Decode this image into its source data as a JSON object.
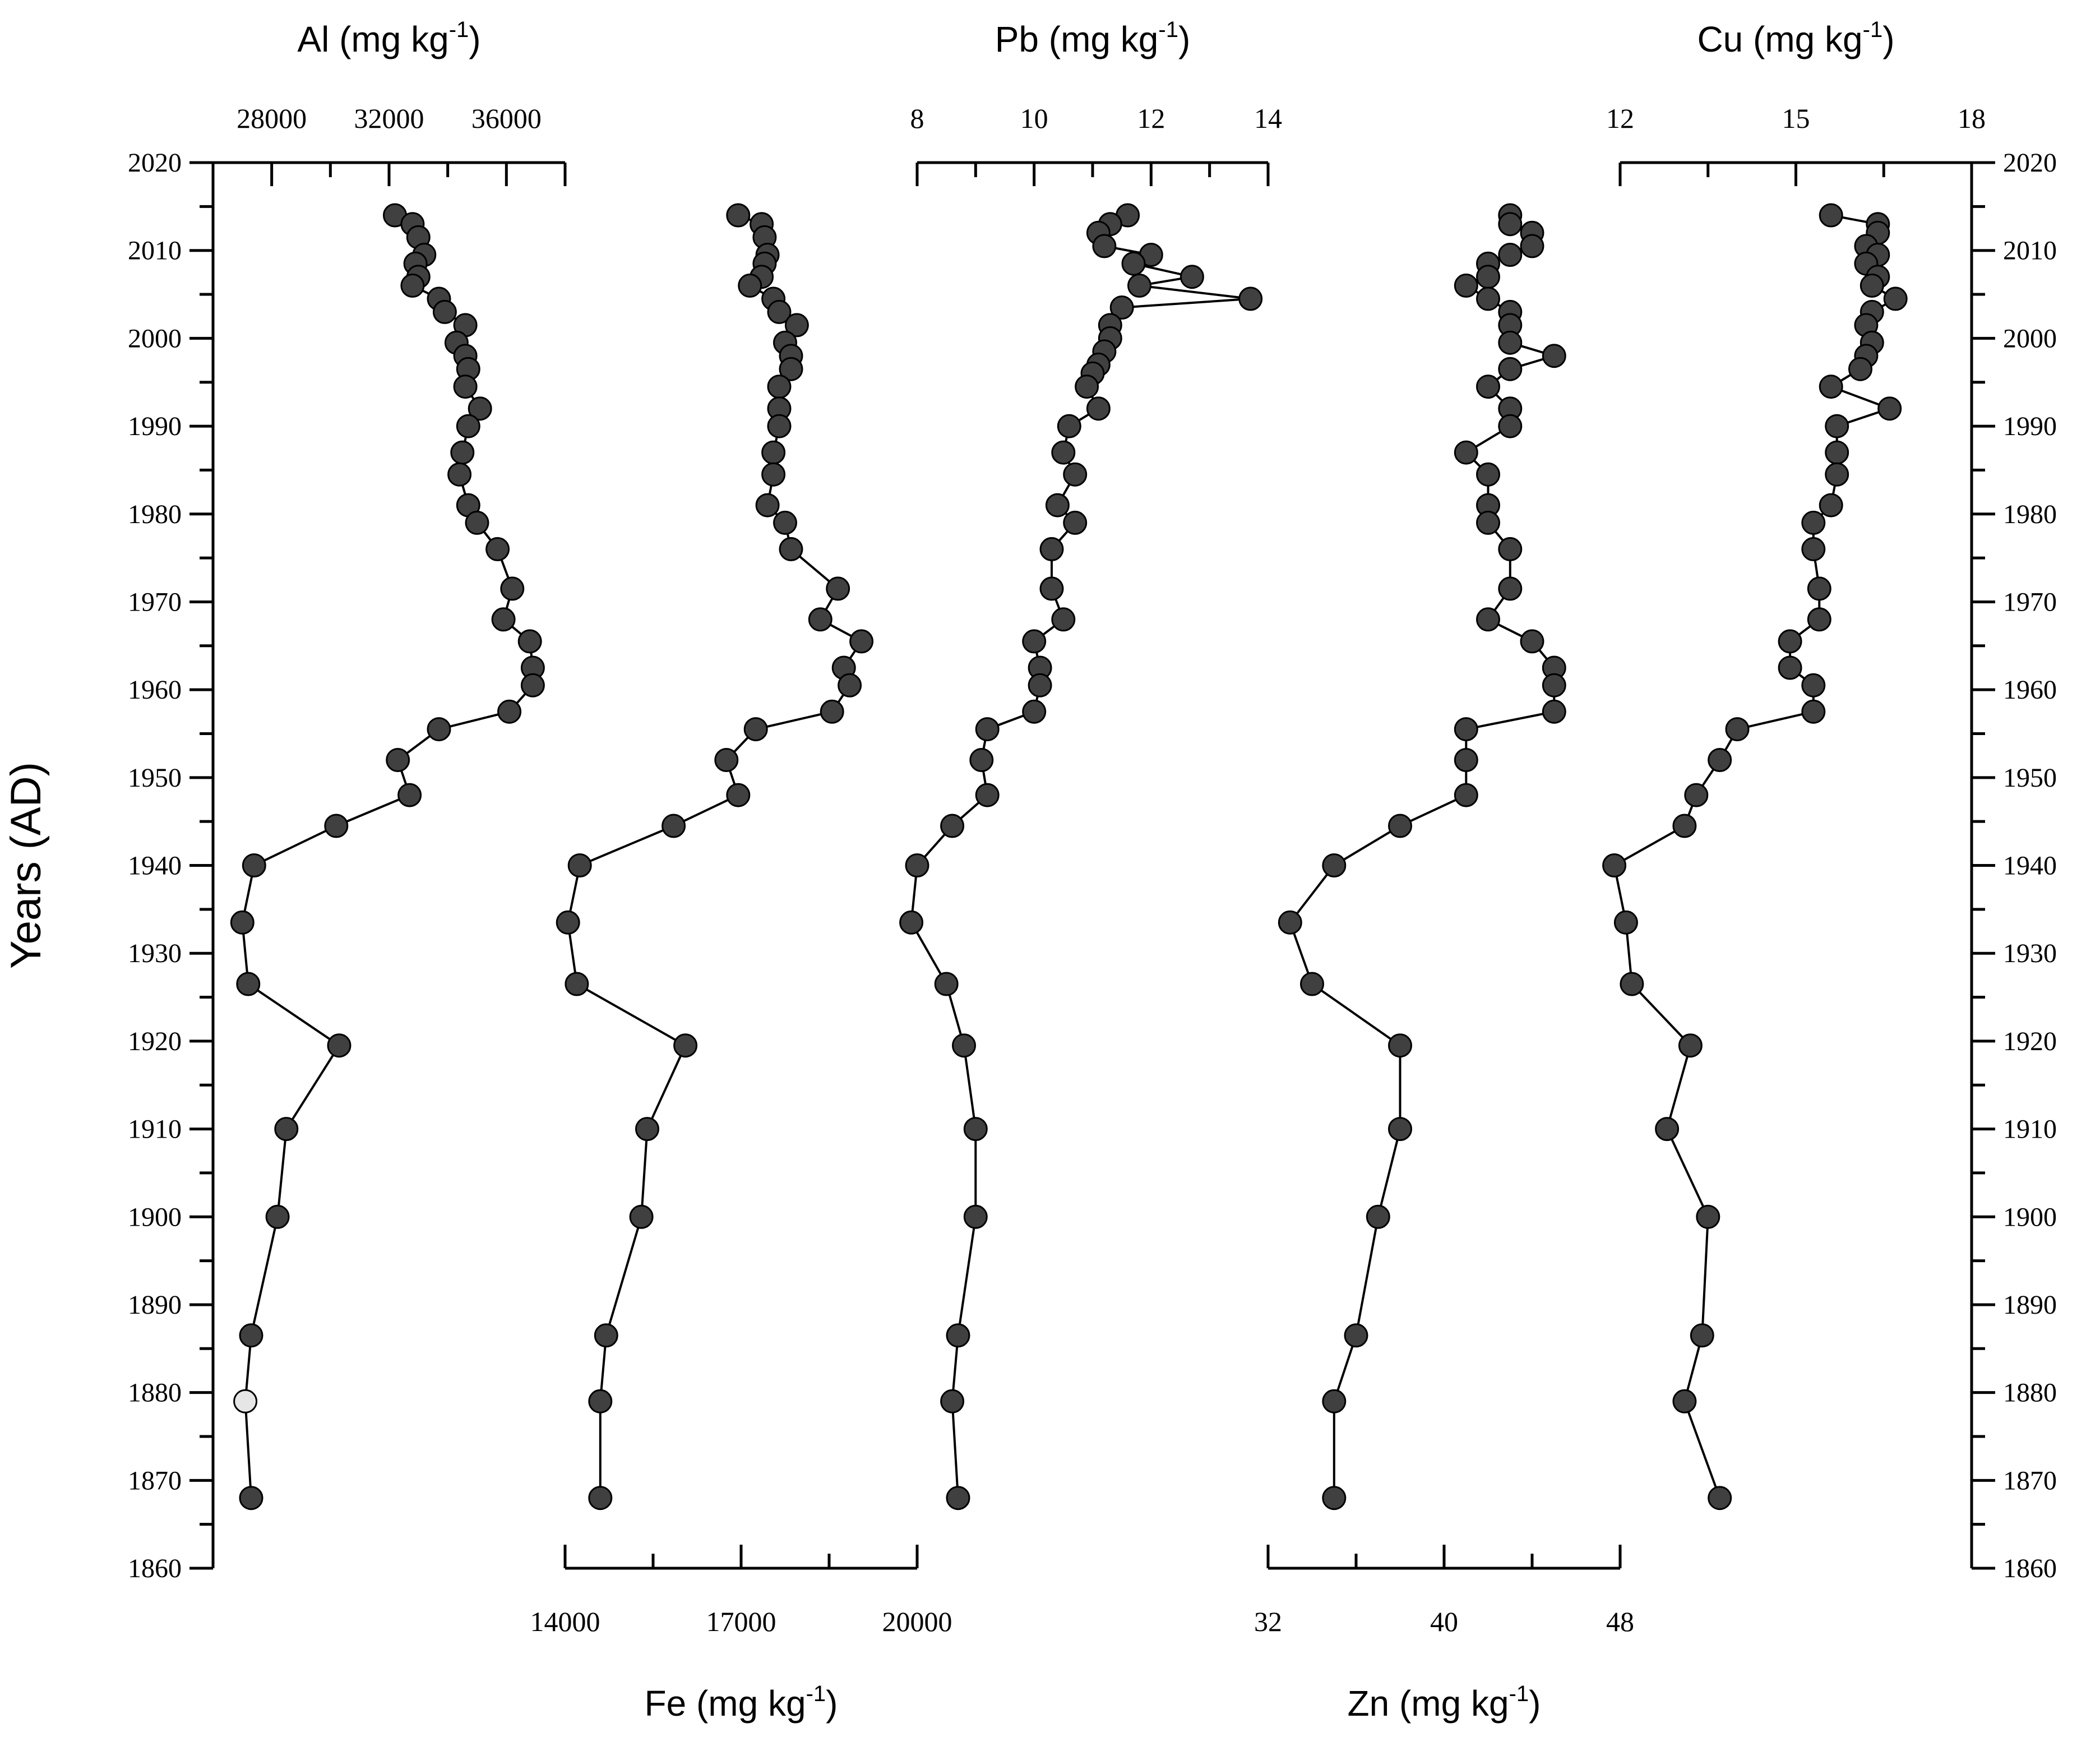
{
  "chart_data": {
    "type": "scatter",
    "y_axis": {
      "label": "Years (AD)",
      "range": [
        1860,
        2020
      ],
      "ticks": [
        1860,
        1870,
        1880,
        1890,
        1900,
        1910,
        1920,
        1930,
        1940,
        1950,
        1960,
        1970,
        1980,
        1990,
        2000,
        2010,
        2020
      ]
    },
    "colors": {
      "point": "#404040",
      "highlight_point": "#e6e6e6",
      "line": "#000000"
    },
    "series": [
      {
        "name": "Al",
        "title": "Al (mg kg",
        "unit_sup": "-1",
        "title_end": ")",
        "axis_position": "top",
        "range": [
          26000,
          38000
        ],
        "ticks": [
          28000,
          32000,
          36000
        ],
        "minor_step": 2000,
        "highlight": [
          1879
        ],
        "points": [
          [
            32200,
            2014
          ],
          [
            32800,
            2013
          ],
          [
            33000,
            2011.5
          ],
          [
            33200,
            2009.5
          ],
          [
            32900,
            2008.5
          ],
          [
            33000,
            2007
          ],
          [
            32800,
            2006
          ],
          [
            33700,
            2004.5
          ],
          [
            33900,
            2003
          ],
          [
            34600,
            2001.5
          ],
          [
            34300,
            1999.5
          ],
          [
            34600,
            1998
          ],
          [
            34700,
            1996.5
          ],
          [
            34600,
            1994.5
          ],
          [
            35100,
            1992
          ],
          [
            34700,
            1990
          ],
          [
            34500,
            1987
          ],
          [
            34400,
            1984.5
          ],
          [
            34700,
            1981
          ],
          [
            35000,
            1979
          ],
          [
            35700,
            1976
          ],
          [
            36200,
            1971.5
          ],
          [
            35900,
            1968
          ],
          [
            36800,
            1965.5
          ],
          [
            36900,
            1962.5
          ],
          [
            36900,
            1960.5
          ],
          [
            36100,
            1957.5
          ],
          [
            33700,
            1955.5
          ],
          [
            32300,
            1952
          ],
          [
            32700,
            1948
          ],
          [
            30200,
            1944.5
          ],
          [
            27400,
            1940
          ],
          [
            27000,
            1933.5
          ],
          [
            27200,
            1926.5
          ],
          [
            30300,
            1919.5
          ],
          [
            28500,
            1910
          ],
          [
            28200,
            1900
          ],
          [
            27300,
            1886.5
          ],
          [
            27100,
            1879
          ],
          [
            27300,
            1868
          ]
        ]
      },
      {
        "name": "Fe",
        "title": "Fe (mg kg",
        "unit_sup": "-1",
        "title_end": ")",
        "axis_position": "bottom",
        "range": [
          14000,
          20000
        ],
        "ticks": [
          14000,
          17000,
          20000
        ],
        "minor_step": 1500,
        "highlight": [],
        "points": [
          [
            16950,
            2014
          ],
          [
            17350,
            2013
          ],
          [
            17400,
            2011.5
          ],
          [
            17450,
            2009.5
          ],
          [
            17400,
            2008.5
          ],
          [
            17350,
            2007
          ],
          [
            17150,
            2006
          ],
          [
            17550,
            2004.5
          ],
          [
            17650,
            2003
          ],
          [
            17950,
            2001.5
          ],
          [
            17750,
            1999.5
          ],
          [
            17850,
            1998
          ],
          [
            17850,
            1996.5
          ],
          [
            17650,
            1994.5
          ],
          [
            17650,
            1992
          ],
          [
            17650,
            1990
          ],
          [
            17550,
            1987
          ],
          [
            17550,
            1984.5
          ],
          [
            17450,
            1981
          ],
          [
            17750,
            1979
          ],
          [
            17850,
            1976
          ],
          [
            18650,
            1971.5
          ],
          [
            18350,
            1968
          ],
          [
            19050,
            1965.5
          ],
          [
            18750,
            1962.5
          ],
          [
            18850,
            1960.5
          ],
          [
            18550,
            1957.5
          ],
          [
            17250,
            1955.5
          ],
          [
            16750,
            1952
          ],
          [
            16950,
            1948
          ],
          [
            15850,
            1944.5
          ],
          [
            14250,
            1940
          ],
          [
            14050,
            1933.5
          ],
          [
            14200,
            1926.5
          ],
          [
            16050,
            1919.5
          ],
          [
            15400,
            1910
          ],
          [
            15300,
            1900
          ],
          [
            14700,
            1886.5
          ],
          [
            14600,
            1879
          ],
          [
            14600,
            1868
          ]
        ]
      },
      {
        "name": "Pb",
        "title": "Pb (mg kg",
        "unit_sup": "-1",
        "title_end": ")",
        "axis_position": "top",
        "range": [
          8,
          14
        ],
        "ticks": [
          8,
          10,
          12,
          14
        ],
        "minor_step": 1,
        "highlight": [],
        "points": [
          [
            11.6,
            2014
          ],
          [
            11.3,
            2013
          ],
          [
            11.1,
            2012
          ],
          [
            11.2,
            2010.5
          ],
          [
            12.0,
            2009.5
          ],
          [
            11.7,
            2008.5
          ],
          [
            12.7,
            2007
          ],
          [
            11.8,
            2006
          ],
          [
            13.7,
            2004.5
          ],
          [
            11.5,
            2003.5
          ],
          [
            11.3,
            2001.5
          ],
          [
            11.3,
            2000
          ],
          [
            11.2,
            1998.5
          ],
          [
            11.1,
            1997
          ],
          [
            11.0,
            1996
          ],
          [
            10.9,
            1994.5
          ],
          [
            11.1,
            1992
          ],
          [
            10.6,
            1990
          ],
          [
            10.5,
            1987
          ],
          [
            10.7,
            1984.5
          ],
          [
            10.4,
            1981
          ],
          [
            10.7,
            1979
          ],
          [
            10.3,
            1976
          ],
          [
            10.3,
            1971.5
          ],
          [
            10.5,
            1968
          ],
          [
            10.0,
            1965.5
          ],
          [
            10.1,
            1962.5
          ],
          [
            10.1,
            1960.5
          ],
          [
            10.0,
            1957.5
          ],
          [
            9.2,
            1955.5
          ],
          [
            9.1,
            1952
          ],
          [
            9.2,
            1948
          ],
          [
            8.6,
            1944.5
          ],
          [
            8.0,
            1940
          ],
          [
            7.9,
            1933.5
          ],
          [
            8.5,
            1926.5
          ],
          [
            8.8,
            1919.5
          ],
          [
            9.0,
            1910
          ],
          [
            9.0,
            1900
          ],
          [
            8.7,
            1886.5
          ],
          [
            8.6,
            1879
          ],
          [
            8.7,
            1868
          ]
        ]
      },
      {
        "name": "Zn",
        "title": "Zn (mg kg",
        "unit_sup": "-1",
        "title_end": ")",
        "axis_position": "bottom",
        "range": [
          32,
          48
        ],
        "ticks": [
          32,
          40,
          48
        ],
        "minor_step": 4,
        "highlight": [],
        "points": [
          [
            43.0,
            2014
          ],
          [
            43.0,
            2013
          ],
          [
            44.0,
            2012
          ],
          [
            44.0,
            2010.5
          ],
          [
            43.0,
            2009.5
          ],
          [
            42.0,
            2008.5
          ],
          [
            42.0,
            2007
          ],
          [
            41.0,
            2006
          ],
          [
            42.0,
            2004.5
          ],
          [
            43.0,
            2003
          ],
          [
            43.0,
            2001.5
          ],
          [
            43.0,
            1999.5
          ],
          [
            45.0,
            1998
          ],
          [
            43.0,
            1996.5
          ],
          [
            42.0,
            1994.5
          ],
          [
            43.0,
            1992
          ],
          [
            43.0,
            1990
          ],
          [
            41.0,
            1987
          ],
          [
            42.0,
            1984.5
          ],
          [
            42.0,
            1981
          ],
          [
            42.0,
            1979
          ],
          [
            43.0,
            1976
          ],
          [
            43.0,
            1971.5
          ],
          [
            42.0,
            1968
          ],
          [
            44.0,
            1965.5
          ],
          [
            45.0,
            1962.5
          ],
          [
            45.0,
            1960.5
          ],
          [
            45.0,
            1957.5
          ],
          [
            41.0,
            1955.5
          ],
          [
            41.0,
            1952
          ],
          [
            41.0,
            1948
          ],
          [
            38.0,
            1944.5
          ],
          [
            35.0,
            1940
          ],
          [
            33.0,
            1933.5
          ],
          [
            34.0,
            1926.5
          ],
          [
            38.0,
            1919.5
          ],
          [
            38.0,
            1910
          ],
          [
            37.0,
            1900
          ],
          [
            36.0,
            1886.5
          ],
          [
            35.0,
            1879
          ],
          [
            35.0,
            1868
          ]
        ]
      },
      {
        "name": "Cu",
        "title": "Cu (mg kg",
        "unit_sup": "-1",
        "title_end": ")",
        "axis_position": "top",
        "range": [
          12,
          18
        ],
        "ticks": [
          12,
          15,
          18
        ],
        "minor_step": 1.5,
        "highlight": [],
        "points": [
          [
            15.6,
            2014
          ],
          [
            16.4,
            2013
          ],
          [
            16.4,
            2012
          ],
          [
            16.2,
            2010.5
          ],
          [
            16.4,
            2009.5
          ],
          [
            16.2,
            2008.5
          ],
          [
            16.4,
            2007
          ],
          [
            16.3,
            2006
          ],
          [
            16.7,
            2004.5
          ],
          [
            16.3,
            2003
          ],
          [
            16.2,
            2001.5
          ],
          [
            16.3,
            1999.5
          ],
          [
            16.2,
            1998
          ],
          [
            16.1,
            1996.5
          ],
          [
            15.6,
            1994.5
          ],
          [
            16.6,
            1992
          ],
          [
            15.7,
            1990
          ],
          [
            15.7,
            1987
          ],
          [
            15.7,
            1984.5
          ],
          [
            15.6,
            1981
          ],
          [
            15.3,
            1979
          ],
          [
            15.3,
            1976
          ],
          [
            15.4,
            1971.5
          ],
          [
            15.4,
            1968
          ],
          [
            14.9,
            1965.5
          ],
          [
            14.9,
            1962.5
          ],
          [
            15.3,
            1960.5
          ],
          [
            15.3,
            1957.5
          ],
          [
            14.0,
            1955.5
          ],
          [
            13.7,
            1952
          ],
          [
            13.3,
            1948
          ],
          [
            13.1,
            1944.5
          ],
          [
            11.9,
            1940
          ],
          [
            12.1,
            1933.5
          ],
          [
            12.2,
            1926.5
          ],
          [
            13.2,
            1919.5
          ],
          [
            12.8,
            1910
          ],
          [
            13.5,
            1900
          ],
          [
            13.4,
            1886.5
          ],
          [
            13.1,
            1879
          ],
          [
            13.7,
            1868
          ]
        ]
      }
    ]
  }
}
